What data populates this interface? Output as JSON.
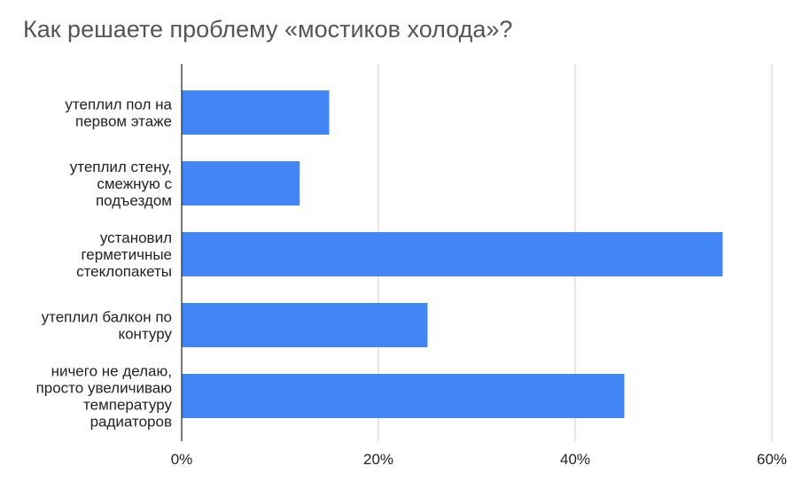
{
  "chart_data": {
    "type": "bar",
    "orientation": "horizontal",
    "title": "Как решаете проблему «мостиков холода»?",
    "categories": [
      [
        "утеплил пол на",
        "первом этаже"
      ],
      [
        "утеплил стену,",
        "смежную с",
        "подъездом"
      ],
      [
        "установил",
        "герметичные",
        "стеклопакеты"
      ],
      [
        "утеплил балкон по",
        "контуру"
      ],
      [
        "ничего не делаю,",
        "просто увеличиваю",
        "температуру",
        "радиаторов"
      ]
    ],
    "values": [
      15,
      12,
      55,
      25,
      45
    ],
    "value_unit": "%",
    "xlim": [
      0,
      60
    ],
    "x_ticks": [
      0,
      20,
      40,
      60
    ],
    "x_tick_labels": [
      "0%",
      "20%",
      "40%",
      "60%"
    ],
    "grid": "vertical",
    "legend": "none",
    "bar_color": "#4285f4",
    "grid_color": "#cccccc",
    "axis_color": "#333333"
  }
}
